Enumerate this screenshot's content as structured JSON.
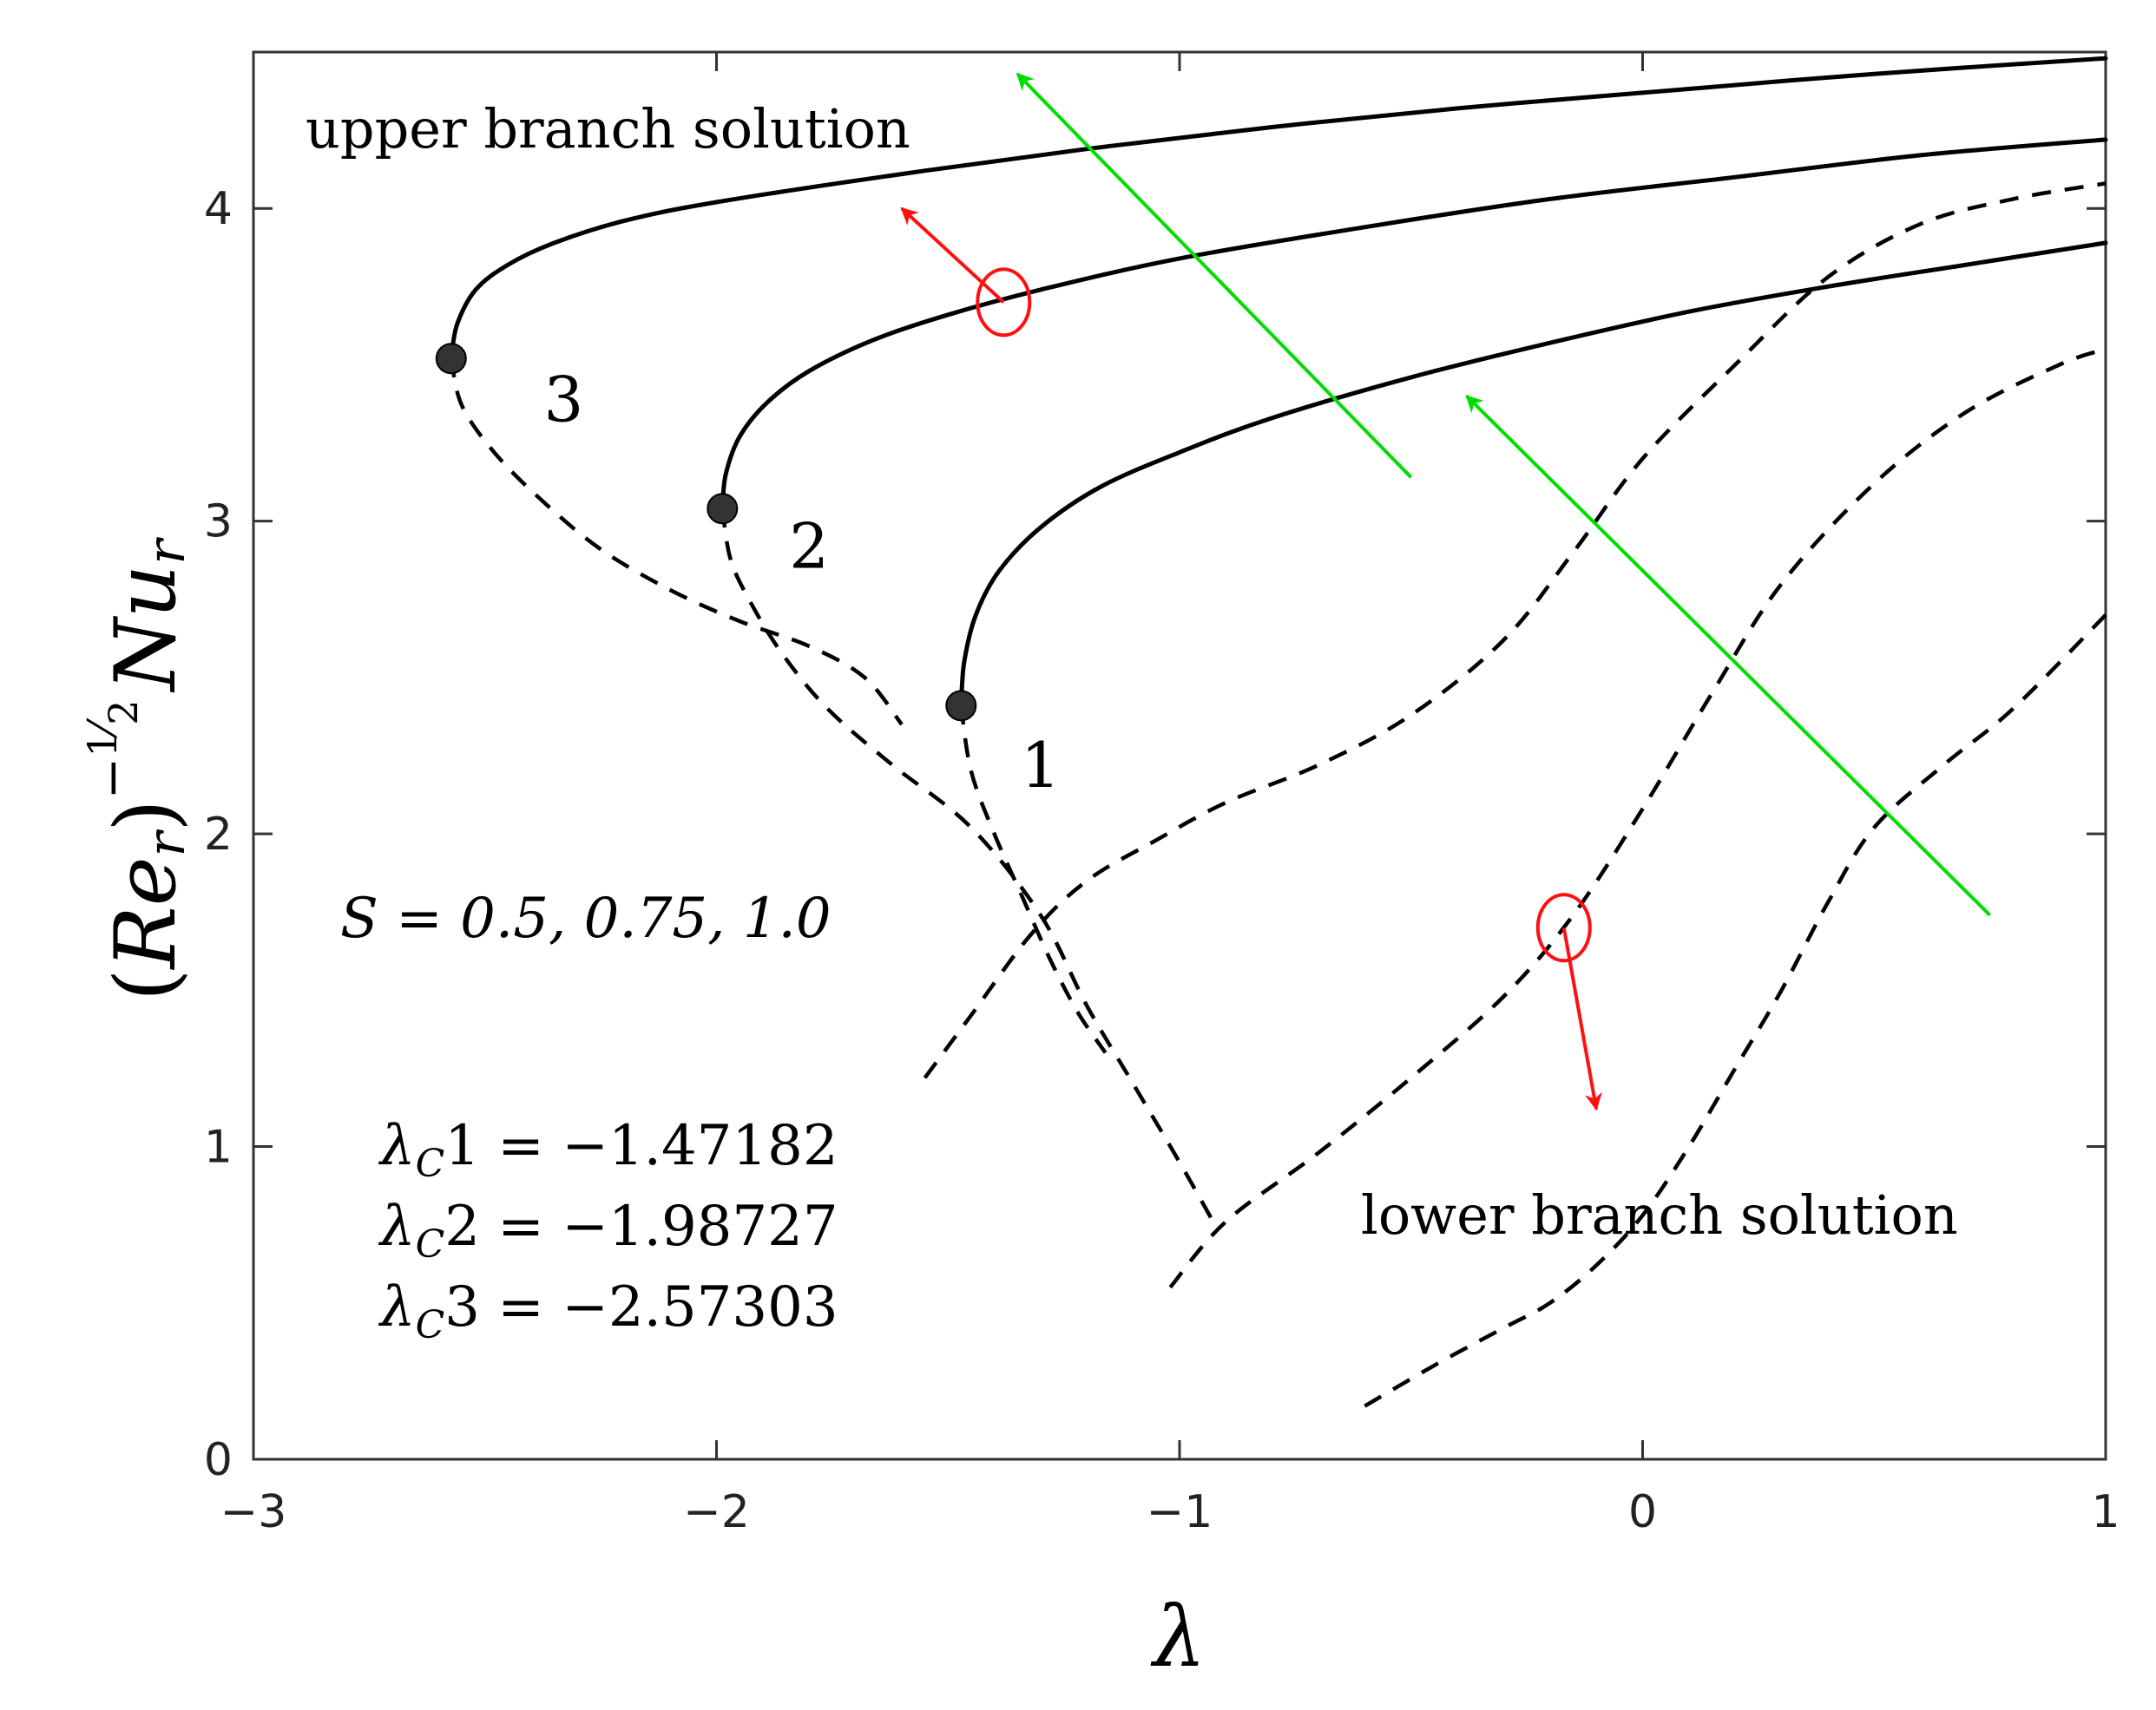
{
  "chart_data": {
    "type": "line",
    "title": "",
    "xlabel": "λ",
    "ylabel_parts": {
      "open": "(",
      "re": "Re",
      "r_sub": "r",
      "close": ")",
      "exp_minus": "−",
      "exp_num": "1",
      "exp_den": "2",
      "nu": "Nu",
      "nu_sub": "r"
    },
    "xlim": [
      -3,
      1
    ],
    "ylim": [
      0,
      4.5
    ],
    "xticks": [
      -3,
      -2,
      -1,
      0,
      1
    ],
    "xtick_labels": [
      "−3",
      "−2",
      "−1",
      "0",
      "1"
    ],
    "yticks": [
      0,
      1,
      2,
      3,
      4
    ],
    "ytick_labels": [
      "0",
      "1",
      "2",
      "3",
      "4"
    ],
    "grid": false,
    "series": [
      {
        "curve_label": "1",
        "branch": "upper",
        "critical_point": [
          -1.47182,
          2.41
        ],
        "points": [
          [
            -1.4718,
            2.41
          ],
          [
            -1.465,
            2.55
          ],
          [
            -1.44,
            2.7
          ],
          [
            -1.39,
            2.84
          ],
          [
            -1.3,
            2.98
          ],
          [
            -1.17,
            3.11
          ],
          [
            -1.0,
            3.22
          ],
          [
            -0.8,
            3.33
          ],
          [
            -0.5,
            3.46
          ],
          [
            -0.2,
            3.57
          ],
          [
            0.1,
            3.67
          ],
          [
            0.4,
            3.75
          ],
          [
            0.7,
            3.82
          ],
          [
            1.0,
            3.89
          ]
        ]
      },
      {
        "curve_label": "1",
        "branch": "lower",
        "points": [
          [
            -1.4718,
            2.41
          ],
          [
            -1.45,
            2.2
          ],
          [
            -1.4,
            2.0
          ],
          [
            -1.34,
            1.8
          ],
          [
            -1.28,
            1.6
          ],
          [
            -1.22,
            1.43
          ],
          [
            -1.16,
            1.3
          ]
        ]
      },
      {
        "curve_label": "1",
        "branch": "lower",
        "points": [
          [
            -1.55,
            1.22
          ],
          [
            -1.45,
            1.42
          ],
          [
            -1.32,
            1.68
          ],
          [
            -1.2,
            1.85
          ],
          [
            -1.05,
            1.98
          ],
          [
            -0.9,
            2.1
          ],
          [
            -0.7,
            2.22
          ],
          [
            -0.5,
            2.38
          ],
          [
            -0.3,
            2.62
          ],
          [
            -0.15,
            2.9
          ],
          [
            0.0,
            3.2
          ],
          [
            0.2,
            3.5
          ],
          [
            0.4,
            3.78
          ],
          [
            0.6,
            3.95
          ],
          [
            0.8,
            4.03
          ],
          [
            1.0,
            4.08
          ]
        ]
      },
      {
        "curve_label": "2",
        "branch": "upper",
        "critical_point": [
          -1.98727,
          3.04
        ],
        "points": [
          [
            -1.9873,
            3.04
          ],
          [
            -1.98,
            3.15
          ],
          [
            -1.95,
            3.27
          ],
          [
            -1.89,
            3.38
          ],
          [
            -1.8,
            3.48
          ],
          [
            -1.66,
            3.58
          ],
          [
            -1.5,
            3.66
          ],
          [
            -1.3,
            3.74
          ],
          [
            -1.0,
            3.84
          ],
          [
            -0.6,
            3.94
          ],
          [
            -0.2,
            4.03
          ],
          [
            0.2,
            4.1
          ],
          [
            0.6,
            4.17
          ],
          [
            1.0,
            4.22
          ]
        ]
      },
      {
        "curve_label": "2",
        "branch": "lower",
        "points": [
          [
            -1.9873,
            3.04
          ],
          [
            -1.97,
            2.88
          ],
          [
            -1.93,
            2.75
          ],
          [
            -1.86,
            2.58
          ],
          [
            -1.76,
            2.4
          ],
          [
            -1.62,
            2.22
          ],
          [
            -1.45,
            2.02
          ],
          [
            -1.3,
            1.74
          ],
          [
            -1.2,
            1.45
          ],
          [
            -1.1,
            1.2
          ],
          [
            -1.0,
            0.95
          ],
          [
            -0.92,
            0.74
          ]
        ]
      },
      {
        "curve_label": "2",
        "branch": "lower",
        "points": [
          [
            -1.02,
            0.55
          ],
          [
            -0.9,
            0.76
          ],
          [
            -0.7,
            0.98
          ],
          [
            -0.5,
            1.22
          ],
          [
            -0.3,
            1.48
          ],
          [
            -0.15,
            1.74
          ],
          [
            0.0,
            2.08
          ],
          [
            0.15,
            2.45
          ],
          [
            0.3,
            2.8
          ],
          [
            0.5,
            3.12
          ],
          [
            0.7,
            3.35
          ],
          [
            0.9,
            3.5
          ],
          [
            1.0,
            3.55
          ]
        ]
      },
      {
        "curve_label": "3",
        "branch": "upper",
        "critical_point": [
          -2.57303,
          3.52
        ],
        "points": [
          [
            -2.573,
            3.52
          ],
          [
            -2.56,
            3.63
          ],
          [
            -2.52,
            3.74
          ],
          [
            -2.45,
            3.82
          ],
          [
            -2.35,
            3.89
          ],
          [
            -2.2,
            3.96
          ],
          [
            -2.0,
            4.02
          ],
          [
            -1.6,
            4.11
          ],
          [
            -1.2,
            4.19
          ],
          [
            -0.8,
            4.26
          ],
          [
            -0.4,
            4.32
          ],
          [
            0.0,
            4.37
          ],
          [
            0.5,
            4.43
          ],
          [
            1.0,
            4.48
          ]
        ]
      },
      {
        "curve_label": "3",
        "branch": "lower",
        "points": [
          [
            -2.573,
            3.52
          ],
          [
            -2.55,
            3.37
          ],
          [
            -2.48,
            3.22
          ],
          [
            -2.38,
            3.07
          ],
          [
            -2.25,
            2.91
          ],
          [
            -2.1,
            2.78
          ],
          [
            -1.95,
            2.68
          ],
          [
            -1.8,
            2.6
          ],
          [
            -1.68,
            2.5
          ],
          [
            -1.6,
            2.35
          ]
        ]
      },
      {
        "curve_label": "3",
        "branch": "lower",
        "points": [
          [
            -0.6,
            0.17
          ],
          [
            -0.45,
            0.3
          ],
          [
            -0.3,
            0.42
          ],
          [
            -0.2,
            0.5
          ],
          [
            -0.1,
            0.62
          ],
          [
            0.0,
            0.78
          ],
          [
            0.1,
            1.0
          ],
          [
            0.2,
            1.25
          ],
          [
            0.3,
            1.5
          ],
          [
            0.4,
            1.78
          ],
          [
            0.5,
            2.02
          ],
          [
            0.65,
            2.22
          ],
          [
            0.8,
            2.4
          ],
          [
            1.0,
            2.7
          ]
        ]
      }
    ],
    "annotations": {
      "upper_branch": "upper branch solution",
      "lower_branch": "lower branch solution",
      "param": "S = 0.5, 0.75, 1.0",
      "lambda_symbol": "λ",
      "lambda_sub": "C",
      "equals": " = ",
      "critical_labels": [
        {
          "index": "1",
          "value": "−1.47182"
        },
        {
          "index": "2",
          "value": "−1.98727"
        },
        {
          "index": "3",
          "value": "−2.57303"
        }
      ],
      "curve_labels": [
        {
          "text": "1",
          "at": [
            -1.3,
            2.15
          ]
        },
        {
          "text": "2",
          "at": [
            -1.8,
            2.85
          ]
        },
        {
          "text": "3",
          "at": [
            -2.33,
            3.32
          ]
        }
      ]
    },
    "arrows": [
      {
        "color": "#00dd00",
        "from": [
          -0.5,
          3.14
        ],
        "to": [
          -1.35,
          4.43
        ]
      },
      {
        "color": "#00dd00",
        "from": [
          0.75,
          1.74
        ],
        "to": [
          -0.38,
          3.4
        ]
      },
      {
        "color": "#ff1010",
        "from": [
          -1.38,
          3.7
        ],
        "to": [
          -1.6,
          4.0
        ],
        "ellipse": [
          -1.38,
          3.7
        ]
      },
      {
        "color": "#ff1010",
        "from": [
          -0.17,
          1.7
        ],
        "to": [
          -0.1,
          1.12
        ],
        "ellipse": [
          -0.17,
          1.7
        ]
      }
    ],
    "colors": {
      "curve": "#000000",
      "marker": "#333333",
      "axis": "#333333"
    }
  }
}
